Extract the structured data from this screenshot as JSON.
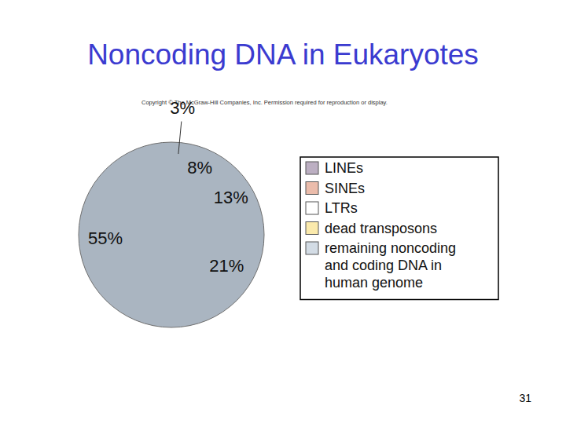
{
  "chart_data": {
    "type": "pie",
    "title": "Noncoding DNA in Eukaryotes",
    "annotations": [
      "Copyright © The McGraw-Hill Companies, Inc. Permission required for reproduction or display.",
      "31"
    ],
    "categories": [
      "LINEs",
      "SINEs",
      "LTRs",
      "dead transposons",
      "remaining noncoding and coding DNA in human genome"
    ],
    "values": [
      21,
      13,
      8,
      3,
      55
    ],
    "value_labels": [
      "21%",
      "13%",
      "8%",
      "3%",
      "55%"
    ],
    "colors": [
      "#bcafc2",
      "#ebbcab",
      "#ffffff",
      "#fbeaac",
      "#d3dce5"
    ],
    "data_labels": true,
    "legend": "right"
  }
}
